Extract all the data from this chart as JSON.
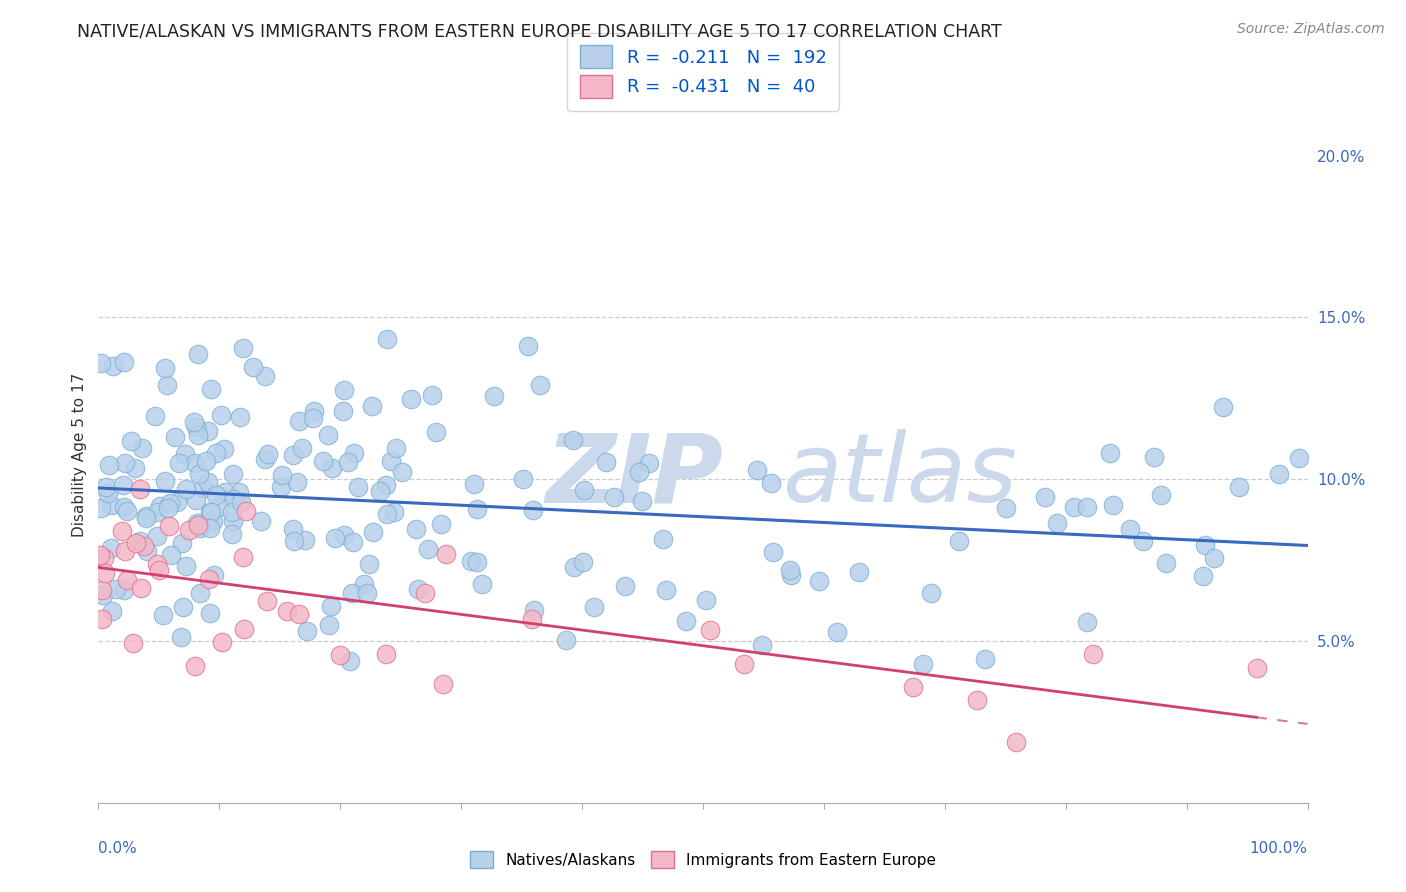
{
  "title": "NATIVE/ALASKAN VS IMMIGRANTS FROM EASTERN EUROPE DISABILITY AGE 5 TO 17 CORRELATION CHART",
  "source": "Source: ZipAtlas.com",
  "ylabel": "Disability Age 5 to 17",
  "xlim": [
    0,
    100
  ],
  "ylim": [
    0,
    21.5
  ],
  "blue_r": -0.211,
  "blue_n": 192,
  "pink_r": -0.431,
  "pink_n": 40,
  "blue_color": "#b8d0ea",
  "blue_edge": "#7aafd4",
  "pink_color": "#f4b8c8",
  "pink_edge": "#e07090",
  "blue_line_color": "#3a6abf",
  "pink_line_color": "#d04070",
  "legend_color": "#0055cc",
  "tick_color": "#3a6abf",
  "grid_color": "#cccccc",
  "background_color": "#ffffff",
  "title_fontsize": 12.5,
  "source_fontsize": 10,
  "axis_label_fontsize": 11,
  "tick_fontsize": 11,
  "watermark_color": "#ccd8ec",
  "watermark_fontsize": 70,
  "legend_fontsize": 13
}
